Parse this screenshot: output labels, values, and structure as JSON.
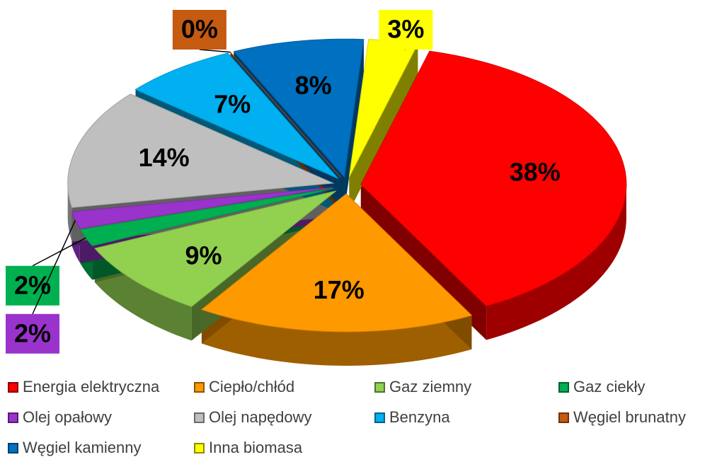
{
  "chart_data": {
    "type": "pie",
    "categories": [
      "Energia elektryczna",
      "Ciepło/chłód",
      "Gaz ziemny",
      "Gaz ciekły",
      "Olej opałowy",
      "Olej napędowy",
      "Benzyna",
      "Węgiel brunatny",
      "Węgiel kamienny",
      "Inna biomasa"
    ],
    "values": [
      38,
      17,
      9,
      2,
      2,
      14,
      7,
      0,
      8,
      3
    ],
    "value_labels": [
      "38%",
      "17%",
      "9%",
      "2%",
      "2%",
      "14%",
      "7%",
      "0%",
      "8%",
      "3%"
    ],
    "colors": [
      "#ff0000",
      "#ff9900",
      "#92d050",
      "#00b050",
      "#9933cc",
      "#bfbfbf",
      "#00b0f0",
      "#c55a11",
      "#0070c0",
      "#ffff00"
    ],
    "legend": "bottom"
  }
}
